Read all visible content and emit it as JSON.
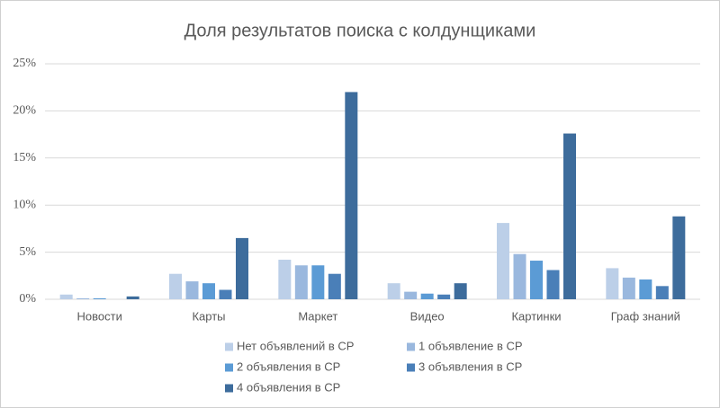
{
  "chart_data": {
    "type": "bar",
    "title": "Доля результатов поиска с колдунщиками",
    "categories": [
      "Новости",
      "Карты",
      "Маркет",
      "Видео",
      "Картинки",
      "Граф знаний"
    ],
    "series": [
      {
        "name": "Нет объявлений в СР",
        "color": "#bccfe8",
        "values": [
          0.5,
          2.7,
          4.2,
          1.7,
          8.1,
          3.3
        ]
      },
      {
        "name": "1 объявление в СР",
        "color": "#9ab8de",
        "values": [
          0.1,
          1.9,
          3.6,
          0.8,
          4.8,
          2.3
        ]
      },
      {
        "name": "2 объявления в СР",
        "color": "#5b9bd5",
        "values": [
          0.1,
          1.7,
          3.6,
          0.6,
          4.1,
          2.1
        ]
      },
      {
        "name": "3 объявления в СР",
        "color": "#4a7fb8",
        "values": [
          0,
          1.0,
          2.7,
          0.5,
          3.1,
          1.4
        ]
      },
      {
        "name": "4 объявления в СР",
        "color": "#3d6c9c",
        "values": [
          0.3,
          6.5,
          22.0,
          1.7,
          17.6,
          8.8
        ]
      }
    ],
    "ylim": [
      0,
      25
    ],
    "yticks": [
      {
        "value": 0,
        "label": "0%"
      },
      {
        "value": 5,
        "label": "5%"
      },
      {
        "value": 10,
        "label": "10%"
      },
      {
        "value": 15,
        "label": "15%"
      },
      {
        "value": 20,
        "label": "20%"
      },
      {
        "value": 25,
        "label": "25%"
      }
    ],
    "grid": true,
    "legend": "bottom"
  }
}
